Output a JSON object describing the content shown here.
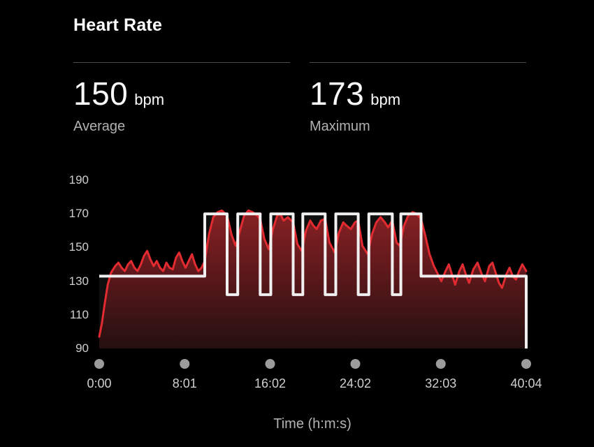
{
  "header": {
    "title": "Heart Rate"
  },
  "stats": {
    "average": {
      "value": "150",
      "unit": "bpm",
      "label": "Average"
    },
    "maximum": {
      "value": "173",
      "unit": "bpm",
      "label": "Maximum"
    }
  },
  "colors": {
    "background": "#000000",
    "heart_rate_line": "#e22b31",
    "target_line": "#f0f0f0",
    "zone_fill": "rgba(255,255,255,0.06)",
    "fill_gradient_top": "#9d262a",
    "fill_gradient_mid": "#63191c",
    "fill_gradient_bottom": "#231010",
    "tick_dot": "#9c9c9c"
  },
  "chart_data": {
    "type": "area",
    "title": "Heart Rate",
    "xlabel": "Time (h:m:s)",
    "ylabel": "bpm",
    "ylim": [
      90,
      190
    ],
    "yticks": [
      190,
      170,
      150,
      130,
      110,
      90
    ],
    "xticks": [
      "0:00",
      "8:01",
      "16:02",
      "24:02",
      "32:03",
      "40:04"
    ],
    "xtick_minutes": [
      0,
      8.0167,
      16.0333,
      24.0333,
      32.05,
      40.0667
    ],
    "total_minutes": 40.0667,
    "grid": false,
    "legend": "none",
    "series": [
      {
        "name": "heart-rate-bpm",
        "style": "line-with-gradient-area",
        "points": [
          [
            0,
            97
          ],
          [
            0.25,
            105
          ],
          [
            0.5,
            116
          ],
          [
            0.8,
            128
          ],
          [
            1.1,
            135
          ],
          [
            1.5,
            139
          ],
          [
            1.8,
            141
          ],
          [
            2.1,
            138
          ],
          [
            2.4,
            136
          ],
          [
            2.7,
            140
          ],
          [
            3.0,
            142
          ],
          [
            3.3,
            138
          ],
          [
            3.6,
            136
          ],
          [
            3.9,
            140
          ],
          [
            4.2,
            145
          ],
          [
            4.5,
            148
          ],
          [
            4.8,
            143
          ],
          [
            5.1,
            139
          ],
          [
            5.4,
            142
          ],
          [
            5.7,
            138
          ],
          [
            6.0,
            136
          ],
          [
            6.3,
            141
          ],
          [
            6.6,
            138
          ],
          [
            6.9,
            137
          ],
          [
            7.2,
            144
          ],
          [
            7.5,
            147
          ],
          [
            7.8,
            142
          ],
          [
            8.1,
            138
          ],
          [
            8.4,
            142
          ],
          [
            8.7,
            146
          ],
          [
            9.0,
            140
          ],
          [
            9.3,
            136
          ],
          [
            9.6,
            138
          ],
          [
            9.9,
            142
          ],
          [
            10.3,
            158
          ],
          [
            10.7,
            168
          ],
          [
            11.1,
            171
          ],
          [
            11.5,
            172
          ],
          [
            12.0,
            169
          ],
          [
            12.4,
            158
          ],
          [
            12.8,
            151
          ],
          [
            13.2,
            160
          ],
          [
            13.6,
            169
          ],
          [
            14.0,
            172
          ],
          [
            14.4,
            171
          ],
          [
            14.8,
            169
          ],
          [
            15.1,
            167
          ],
          [
            15.5,
            155
          ],
          [
            15.9,
            149
          ],
          [
            16.3,
            161
          ],
          [
            16.7,
            169
          ],
          [
            17.0,
            170
          ],
          [
            17.3,
            166
          ],
          [
            17.7,
            168
          ],
          [
            18.2,
            165
          ],
          [
            18.6,
            152
          ],
          [
            19.0,
            148
          ],
          [
            19.4,
            160
          ],
          [
            19.8,
            166
          ],
          [
            20.1,
            163
          ],
          [
            20.4,
            161
          ],
          [
            20.8,
            166
          ],
          [
            21.2,
            167
          ],
          [
            21.6,
            153
          ],
          [
            22.1,
            147
          ],
          [
            22.5,
            159
          ],
          [
            22.9,
            165
          ],
          [
            23.2,
            163
          ],
          [
            23.6,
            161
          ],
          [
            24.0,
            165
          ],
          [
            24.3,
            166
          ],
          [
            24.7,
            151
          ],
          [
            25.2,
            146
          ],
          [
            25.6,
            158
          ],
          [
            26.0,
            165
          ],
          [
            26.4,
            168
          ],
          [
            26.8,
            165
          ],
          [
            27.1,
            162
          ],
          [
            27.5,
            166
          ],
          [
            27.9,
            153
          ],
          [
            28.2,
            151
          ],
          [
            28.6,
            163
          ],
          [
            29.0,
            169
          ],
          [
            29.4,
            171
          ],
          [
            29.8,
            170
          ],
          [
            30.2,
            167
          ],
          [
            30.6,
            157
          ],
          [
            31.0,
            146
          ],
          [
            31.4,
            139
          ],
          [
            31.8,
            134
          ],
          [
            32.1,
            130
          ],
          [
            32.5,
            136
          ],
          [
            32.8,
            140
          ],
          [
            33.1,
            134
          ],
          [
            33.4,
            128
          ],
          [
            33.8,
            136
          ],
          [
            34.1,
            140
          ],
          [
            34.4,
            134
          ],
          [
            34.7,
            129
          ],
          [
            35.1,
            137
          ],
          [
            35.5,
            141
          ],
          [
            35.9,
            134
          ],
          [
            36.2,
            130
          ],
          [
            36.6,
            139
          ],
          [
            36.9,
            141
          ],
          [
            37.2,
            135
          ],
          [
            37.5,
            129
          ],
          [
            37.8,
            126
          ],
          [
            38.2,
            134
          ],
          [
            38.5,
            138
          ],
          [
            38.8,
            133
          ],
          [
            39.1,
            131
          ],
          [
            39.4,
            136
          ],
          [
            39.7,
            140
          ],
          [
            40.0667,
            136
          ]
        ]
      },
      {
        "name": "target-zone-steps",
        "style": "step-line",
        "points": [
          [
            0,
            133
          ],
          [
            9.9,
            133
          ],
          [
            9.9,
            170
          ],
          [
            12.0,
            170
          ],
          [
            12.0,
            122
          ],
          [
            13.0,
            122
          ],
          [
            13.0,
            170
          ],
          [
            15.1,
            170
          ],
          [
            15.1,
            122
          ],
          [
            16.1,
            122
          ],
          [
            16.1,
            170
          ],
          [
            18.2,
            170
          ],
          [
            18.2,
            122
          ],
          [
            19.1,
            122
          ],
          [
            19.1,
            170
          ],
          [
            21.2,
            170
          ],
          [
            21.2,
            122
          ],
          [
            22.2,
            122
          ],
          [
            22.2,
            170
          ],
          [
            24.3,
            170
          ],
          [
            24.3,
            122
          ],
          [
            25.3,
            122
          ],
          [
            25.3,
            170
          ],
          [
            27.5,
            170
          ],
          [
            27.5,
            122
          ],
          [
            28.3,
            122
          ],
          [
            28.3,
            170
          ],
          [
            30.2,
            170
          ],
          [
            30.2,
            133
          ],
          [
            40.0667,
            133
          ],
          [
            40.0667,
            90
          ]
        ]
      }
    ]
  }
}
